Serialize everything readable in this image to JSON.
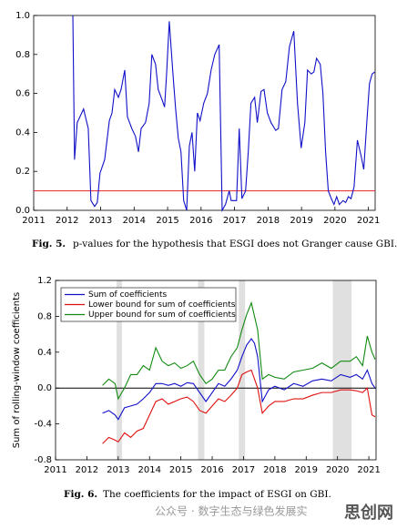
{
  "chart_data": [
    {
      "type": "line",
      "caption_label": "Fig. 5.",
      "caption": "p-values for the hypothesis that ESGI does not Granger cause GBI.",
      "xlim": [
        2011,
        2021.2
      ],
      "ylim": [
        0,
        1
      ],
      "xticks": [
        2011,
        2012,
        2013,
        2014,
        2015,
        2016,
        2017,
        2018,
        2019,
        2020,
        2021
      ],
      "yticks": [
        {
          "value": 0,
          "label": "0.0"
        },
        0.2,
        0.4,
        0.6,
        0.8,
        {
          "value": 1,
          "label": "1.0"
        }
      ],
      "hline": {
        "value": 0.1,
        "color": "#e8222b"
      },
      "x": [
        2012.17,
        2012.22,
        2012.3,
        2012.49,
        2012.63,
        2012.71,
        2012.82,
        2012.9,
        2012.98,
        2013.12,
        2013.26,
        2013.34,
        2013.42,
        2013.53,
        2013.61,
        2013.72,
        2013.8,
        2013.93,
        2014.04,
        2014.13,
        2014.21,
        2014.34,
        2014.45,
        2014.53,
        2014.64,
        2014.72,
        2014.83,
        2014.91,
        2014.97,
        2015.05,
        2015.16,
        2015.24,
        2015.32,
        2015.4,
        2015.48,
        2015.57,
        2015.65,
        2015.73,
        2015.81,
        2015.89,
        2015.97,
        2016.08,
        2016.19,
        2016.3,
        2016.41,
        2016.54,
        2016.63,
        2016.73,
        2016.84,
        2016.9,
        2017.06,
        2017.14,
        2017.22,
        2017.33,
        2017.41,
        2017.49,
        2017.6,
        2017.68,
        2017.79,
        2017.88,
        2017.98,
        2018.09,
        2018.23,
        2018.31,
        2018.42,
        2018.53,
        2018.64,
        2018.77,
        2018.88,
        2018.99,
        2019.1,
        2019.18,
        2019.29,
        2019.37,
        2019.45,
        2019.56,
        2019.64,
        2019.72,
        2019.8,
        2019.89,
        2019.97,
        2020.05,
        2020.13,
        2020.24,
        2020.32,
        2020.4,
        2020.48,
        2020.57,
        2020.67,
        2020.78,
        2020.86,
        2020.95,
        2021.03,
        2021.11,
        2021.19
      ],
      "series": [
        {
          "color": "#1010c8",
          "values": [
            1.0,
            0.26,
            0.45,
            0.52,
            0.42,
            0.05,
            0.02,
            0.04,
            0.19,
            0.26,
            0.46,
            0.5,
            0.62,
            0.58,
            0.62,
            0.72,
            0.48,
            0.42,
            0.38,
            0.3,
            0.42,
            0.45,
            0.55,
            0.8,
            0.75,
            0.62,
            0.57,
            0.53,
            0.7,
            0.97,
            0.7,
            0.52,
            0.37,
            0.3,
            0.05,
            0.0,
            0.33,
            0.4,
            0.2,
            0.5,
            0.46,
            0.55,
            0.6,
            0.72,
            0.8,
            0.85,
            0.0,
            0.03,
            0.1,
            0.05,
            0.05,
            0.42,
            0.06,
            0.1,
            0.3,
            0.55,
            0.58,
            0.45,
            0.61,
            0.62,
            0.5,
            0.45,
            0.41,
            0.42,
            0.62,
            0.66,
            0.84,
            0.92,
            0.55,
            0.32,
            0.45,
            0.72,
            0.7,
            0.71,
            0.78,
            0.75,
            0.6,
            0.3,
            0.1,
            0.06,
            0.03,
            0.07,
            0.03,
            0.05,
            0.04,
            0.07,
            0.06,
            0.12,
            0.36,
            0.28,
            0.21,
            0.45,
            0.65,
            0.7,
            0.71
          ]
        }
      ]
    },
    {
      "type": "line",
      "caption_label": "Fig. 6.",
      "caption": "The coefficients for the impact of ESGI on GBI.",
      "y_label": "Sum of rolling-window coefficients",
      "xlim": [
        2011,
        2021.23
      ],
      "ylim": [
        -0.8,
        1.2
      ],
      "xticks": [
        2011,
        2012,
        2013,
        2014,
        2015,
        2016,
        2017,
        2018,
        2019,
        2020,
        2021
      ],
      "yticks": [
        -0.8,
        -0.4,
        {
          "value": 0,
          "label": "0.0"
        },
        0.4,
        0.8,
        1.2
      ],
      "hline": {
        "value": 0,
        "color": "#000000"
      },
      "shaded_regions": [
        [
          2012.95,
          2013.12
        ],
        [
          2015.55,
          2015.75
        ],
        [
          2016.85,
          2017.05
        ],
        [
          2019.85,
          2020.45
        ]
      ],
      "legend": "upper left",
      "x": [
        2012.5,
        2012.7,
        2012.9,
        2013.0,
        2013.2,
        2013.4,
        2013.6,
        2013.8,
        2014.0,
        2014.2,
        2014.4,
        2014.6,
        2014.8,
        2015.0,
        2015.2,
        2015.4,
        2015.6,
        2015.8,
        2016.0,
        2016.2,
        2016.4,
        2016.6,
        2016.8,
        2016.95,
        2017.1,
        2017.25,
        2017.35,
        2017.45,
        2017.6,
        2017.8,
        2018.0,
        2018.3,
        2018.6,
        2018.9,
        2019.2,
        2019.5,
        2019.8,
        2020.1,
        2020.4,
        2020.6,
        2020.8,
        2020.95,
        2021.1,
        2021.2
      ],
      "series": [
        {
          "name": "Sum of coefficients",
          "color": "#1010c8",
          "values": [
            -0.28,
            -0.25,
            -0.3,
            -0.35,
            -0.22,
            -0.2,
            -0.18,
            -0.12,
            -0.05,
            0.05,
            0.05,
            0.03,
            0.05,
            0.02,
            0.06,
            0.05,
            -0.05,
            -0.15,
            -0.05,
            0.05,
            0.02,
            0.1,
            0.2,
            0.35,
            0.48,
            0.55,
            0.5,
            0.35,
            -0.15,
            -0.02,
            0.02,
            -0.02,
            0.05,
            0.02,
            0.08,
            0.1,
            0.08,
            0.15,
            0.12,
            0.15,
            0.1,
            0.2,
            0.05,
            0.0
          ]
        },
        {
          "name": "Lower bound for sum of coefficients",
          "color": "#e01010",
          "values": [
            -0.62,
            -0.55,
            -0.58,
            -0.6,
            -0.5,
            -0.55,
            -0.48,
            -0.45,
            -0.3,
            -0.15,
            -0.12,
            -0.18,
            -0.15,
            -0.12,
            -0.1,
            -0.15,
            -0.25,
            -0.28,
            -0.2,
            -0.12,
            -0.15,
            -0.08,
            0.0,
            0.15,
            0.18,
            0.2,
            0.1,
            0.0,
            -0.28,
            -0.2,
            -0.15,
            -0.15,
            -0.12,
            -0.12,
            -0.08,
            -0.05,
            -0.05,
            -0.02,
            -0.02,
            -0.03,
            -0.05,
            0.0,
            -0.3,
            -0.32
          ]
        },
        {
          "name": "Upper bound for sum of coefficients",
          "color": "#108a10",
          "values": [
            0.03,
            0.1,
            0.05,
            -0.12,
            0.0,
            0.15,
            0.15,
            0.25,
            0.2,
            0.45,
            0.3,
            0.25,
            0.28,
            0.22,
            0.25,
            0.3,
            0.15,
            0.05,
            0.1,
            0.2,
            0.2,
            0.35,
            0.45,
            0.65,
            0.82,
            0.95,
            0.8,
            0.65,
            0.1,
            0.15,
            0.12,
            0.1,
            0.18,
            0.2,
            0.22,
            0.28,
            0.22,
            0.3,
            0.3,
            0.35,
            0.25,
            0.58,
            0.4,
            0.32
          ]
        }
      ]
    }
  ],
  "watermark": [
    "公众号 · 数字生态与绿色发展实",
    "思创网"
  ]
}
